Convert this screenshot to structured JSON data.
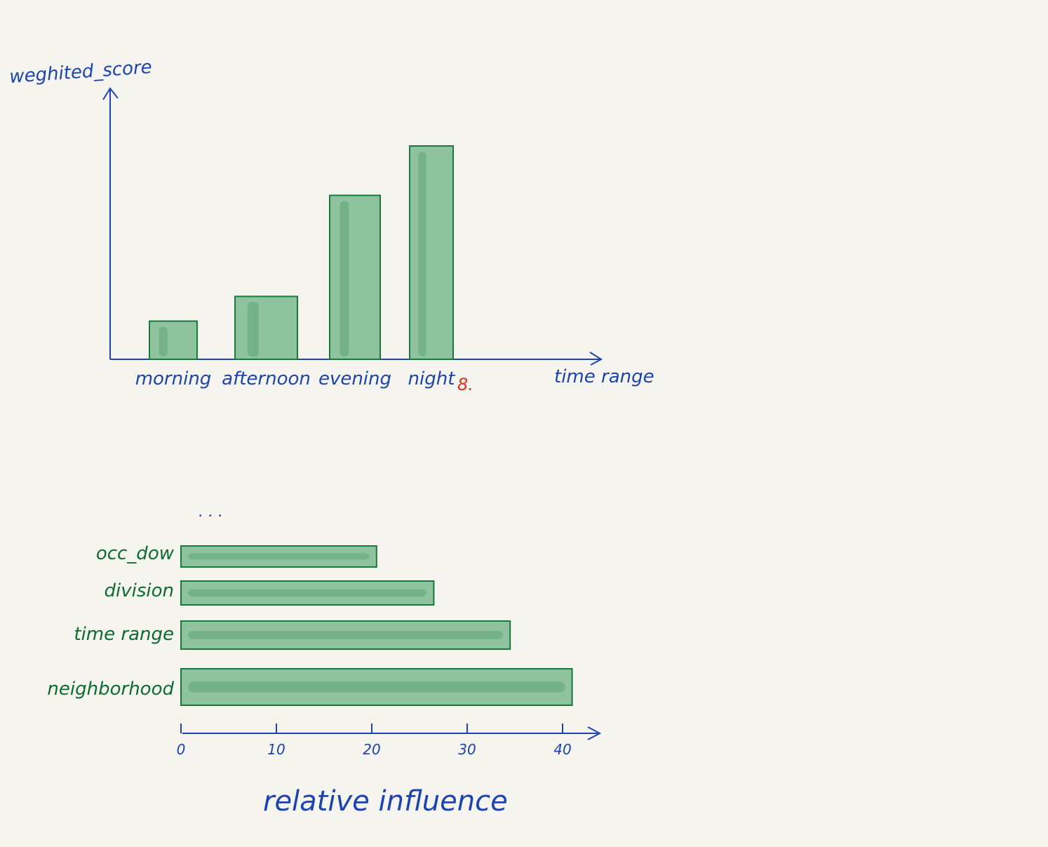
{
  "chart_data": [
    {
      "type": "bar",
      "orientation": "vertical",
      "categories": [
        "morning",
        "afternoon",
        "evening",
        "night"
      ],
      "values": [
        1.7,
        2.8,
        7.3,
        9.5
      ],
      "ylabel": "weghited_score",
      "xlabel": "time range",
      "ylim": [
        0,
        12
      ],
      "grid": false,
      "annotation": "8.",
      "colors": {
        "bar": "#8fc29f",
        "bar_edge": "#177a3a",
        "axis": "#1c44b0",
        "annotation": "#e0301e"
      }
    },
    {
      "type": "bar",
      "orientation": "horizontal",
      "categories": [
        "occ_dow",
        "division",
        "time range",
        "neighborhood"
      ],
      "values": [
        20.5,
        26.5,
        34.5,
        41
      ],
      "xlabel": "relative influence",
      "xticks": [
        "0",
        "10",
        "20",
        "30",
        "40"
      ],
      "xlim": [
        0,
        45
      ],
      "ellipsis": ". . .",
      "grid": false,
      "colors": {
        "bar": "#8fc29f",
        "bar_edge": "#177a3a",
        "axis": "#1c44b0",
        "label": "#0d6b2e"
      }
    }
  ]
}
